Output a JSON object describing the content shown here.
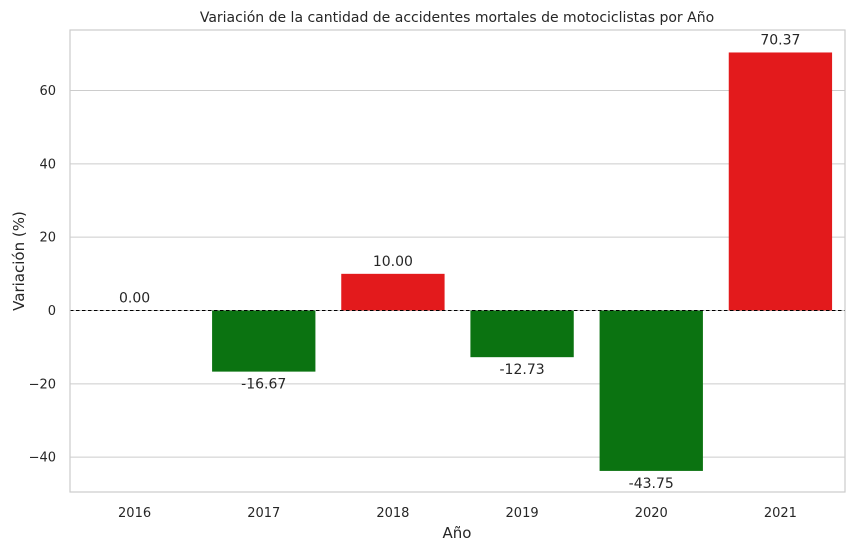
{
  "chart_data": {
    "type": "bar",
    "title": "Variación de la cantidad de accidentes mortales de motociclistas por Año",
    "xlabel": "Año",
    "ylabel": "Variación (%)",
    "categories": [
      "2016",
      "2017",
      "2018",
      "2019",
      "2020",
      "2021"
    ],
    "values": [
      0.0,
      -16.67,
      10.0,
      -12.73,
      -43.75,
      70.37
    ],
    "data_labels": [
      "0.00",
      "-16.67",
      "10.00",
      "-12.73",
      "-43.75",
      "70.37"
    ],
    "ylim": [
      -49.5,
      76.5
    ],
    "yticks": [
      -40,
      -20,
      0,
      20,
      40,
      60
    ],
    "ytick_labels": [
      "−40",
      "−20",
      "0",
      "20",
      "40",
      "60"
    ],
    "grid": true,
    "zero_line": "dashed",
    "colors": {
      "positive": "#e31a1c",
      "negative": "#0b7311",
      "grid": "#cccccc"
    }
  }
}
